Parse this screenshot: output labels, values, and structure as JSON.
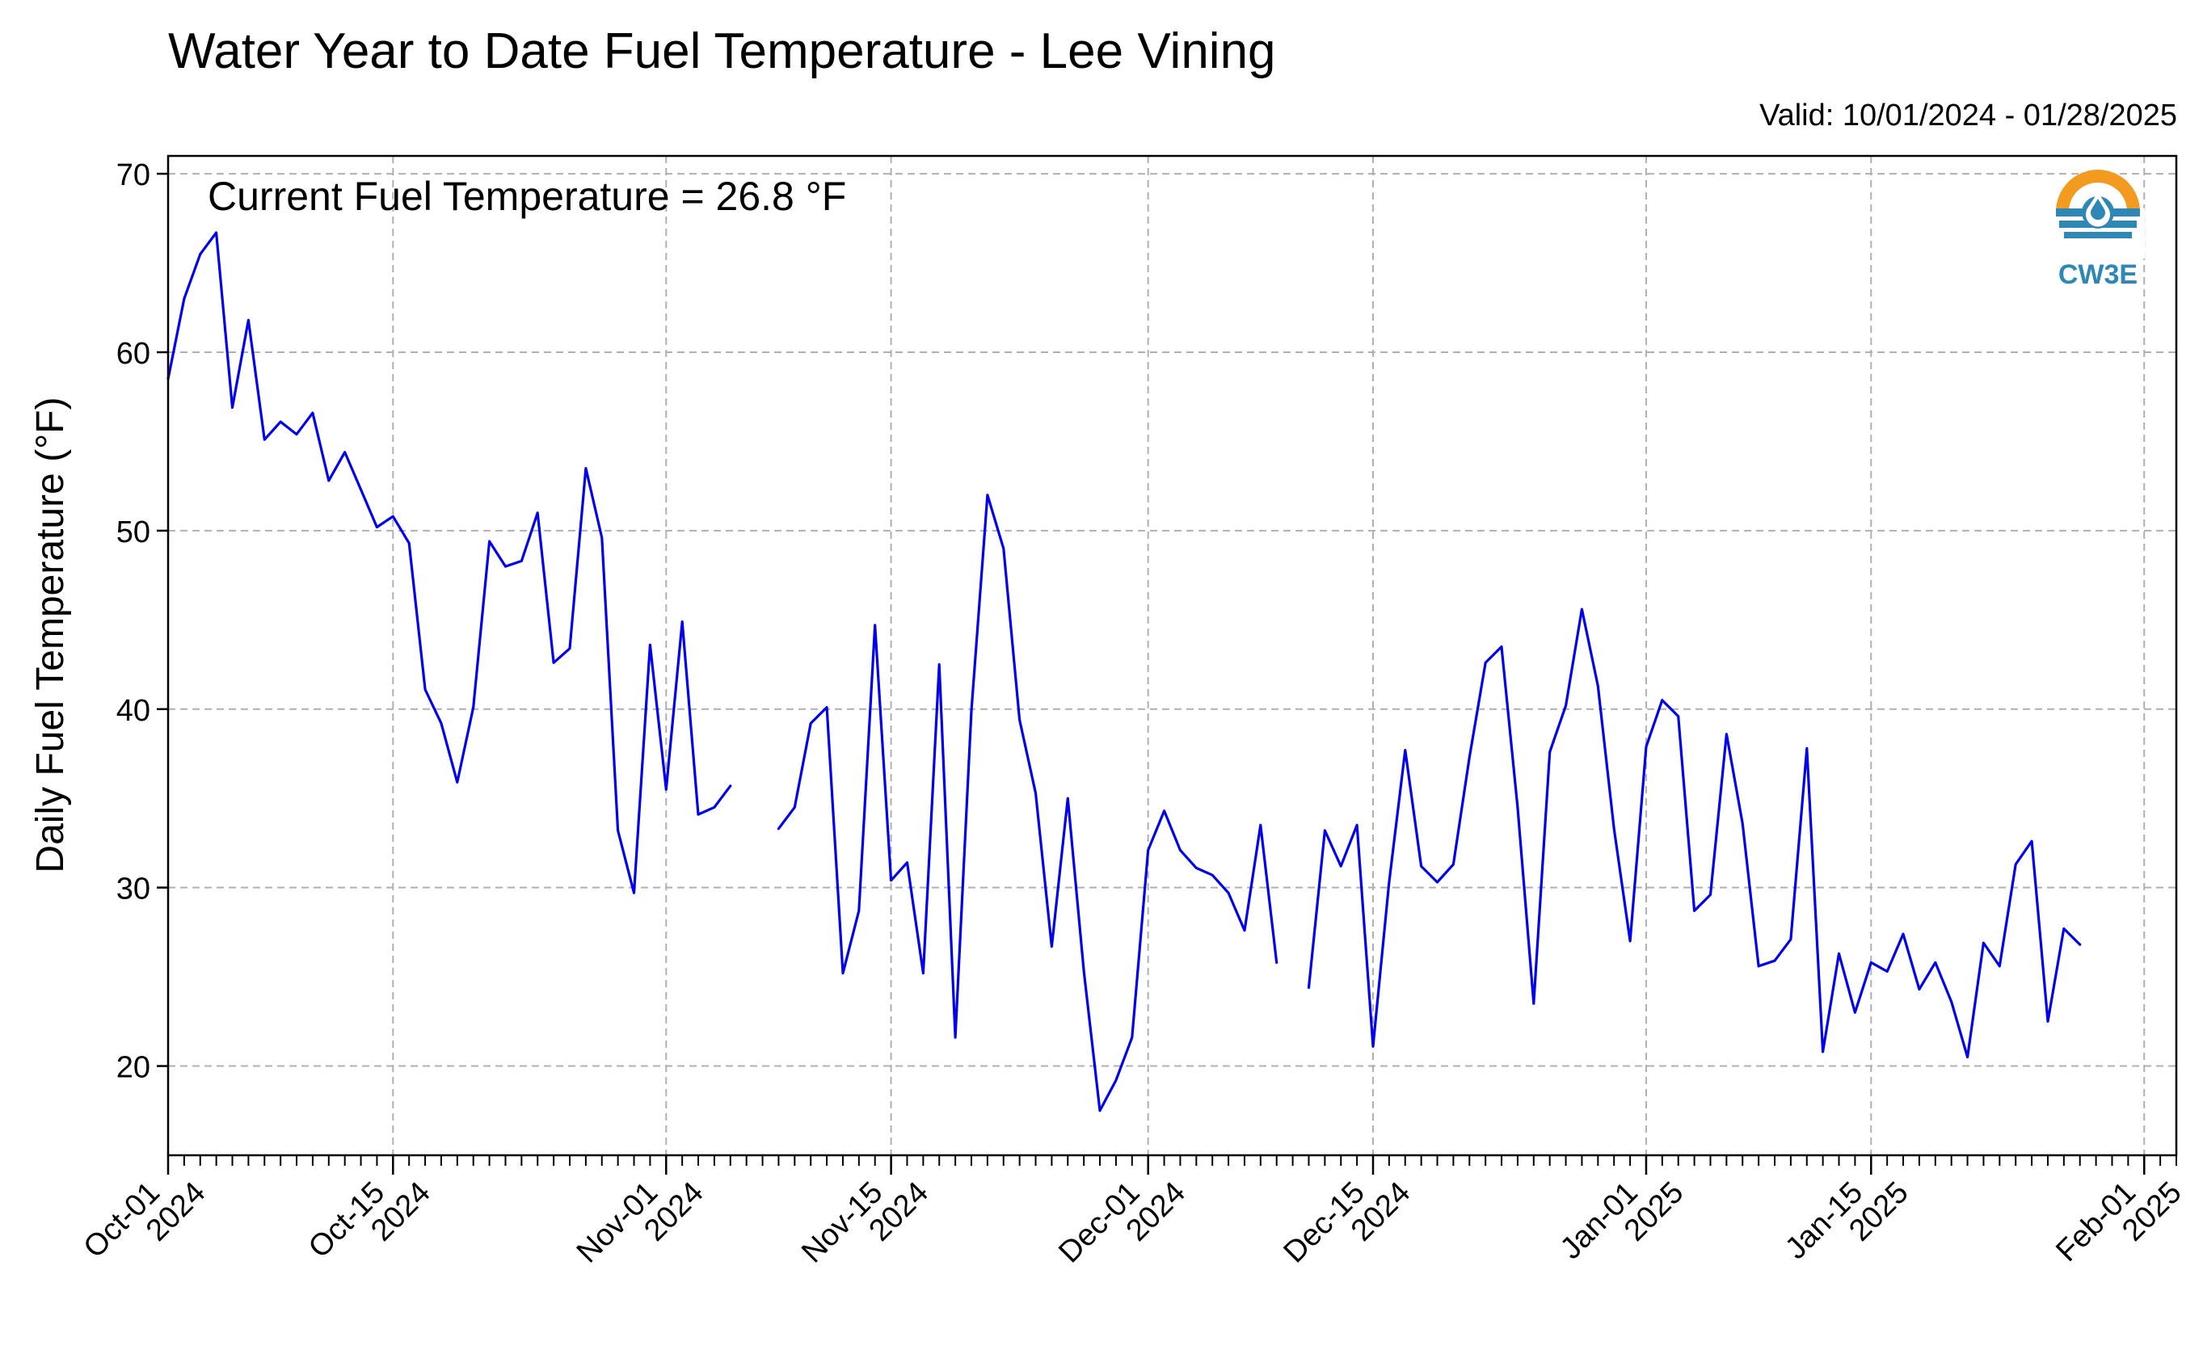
{
  "title": "Water Year to Date Fuel Temperature - Lee Vining",
  "valid_label": "Valid: 10/01/2024 - 01/28/2025",
  "annotation": "Current Fuel Temperature = 26.8  °F",
  "logo": {
    "text": "CW3E",
    "icon": "cw3e-logo-icon",
    "colors": {
      "sun": "#f39a21",
      "water": "#2e87b5"
    }
  },
  "chart_data": {
    "type": "line",
    "title": "Water Year to Date Fuel Temperature - Lee Vining",
    "xlabel": "",
    "ylabel": "Daily Fuel Temperature (°F)",
    "start_date": "2024-10-01",
    "xlim": [
      "2024-10-01",
      "2025-02-03"
    ],
    "ylim": [
      15,
      71
    ],
    "yticks": [
      20,
      30,
      40,
      50,
      60,
      70
    ],
    "xticks": [
      {
        "date": "2024-10-01",
        "line1": "Oct-01",
        "line2": "2024"
      },
      {
        "date": "2024-10-15",
        "line1": "Oct-15",
        "line2": "2024"
      },
      {
        "date": "2024-11-01",
        "line1": "Nov-01",
        "line2": "2024"
      },
      {
        "date": "2024-11-15",
        "line1": "Nov-15",
        "line2": "2024"
      },
      {
        "date": "2024-12-01",
        "line1": "Dec-01",
        "line2": "2024"
      },
      {
        "date": "2024-12-15",
        "line1": "Dec-15",
        "line2": "2024"
      },
      {
        "date": "2025-01-01",
        "line1": "Jan-01",
        "line2": "2025"
      },
      {
        "date": "2025-01-15",
        "line1": "Jan-15",
        "line2": "2025"
      },
      {
        "date": "2025-02-01",
        "line1": "Feb-01",
        "line2": "2025"
      }
    ],
    "grid": true,
    "line_color": "#0000ee",
    "series": [
      {
        "values": [
          58.5,
          63.0,
          65.5,
          66.7,
          56.9,
          61.8,
          55.1,
          56.1,
          55.4,
          56.6,
          52.8,
          54.4,
          52.3,
          50.2,
          50.8,
          49.3,
          41.1,
          39.2,
          35.9,
          40.1,
          49.4,
          48.0,
          48.3,
          51.0,
          42.6,
          43.4,
          53.5,
          49.6,
          33.2,
          29.7,
          43.6,
          35.5,
          44.9,
          34.1,
          34.5,
          35.7,
          null,
          null,
          33.3,
          34.5,
          39.2,
          40.1,
          25.2,
          28.7,
          44.7,
          30.4,
          31.4,
          25.2,
          42.5,
          21.6,
          39.9,
          52.0,
          49.0,
          39.4,
          35.3,
          26.7,
          35.0,
          25.3,
          17.5,
          19.2,
          21.6,
          32.1,
          34.3,
          32.1,
          31.1,
          30.7,
          29.7,
          27.6,
          33.5,
          25.8,
          null,
          24.4,
          33.2,
          31.2,
          33.5,
          21.1,
          30.3,
          37.7,
          31.2,
          30.3,
          31.3,
          37.3,
          42.6,
          43.5,
          34.5,
          23.5,
          37.6,
          40.2,
          45.6,
          41.3,
          33.3,
          27.0,
          37.9,
          40.5,
          39.6,
          28.7,
          29.6,
          38.6,
          33.6,
          25.6,
          25.9,
          27.1,
          37.8,
          20.8,
          26.3,
          23.0,
          25.8,
          25.3,
          27.4,
          24.3,
          25.8,
          23.6,
          20.5,
          26.9,
          25.6,
          31.3,
          32.6,
          22.5,
          27.7,
          26.8
        ]
      }
    ]
  }
}
